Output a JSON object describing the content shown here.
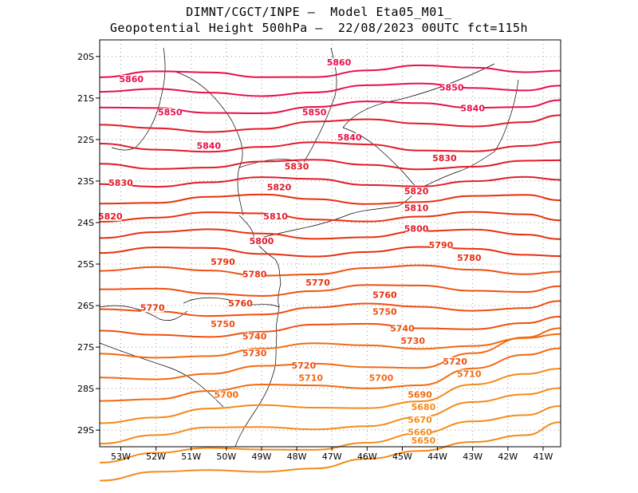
{
  "header": {
    "line1": "DIMNT/CGCT/INPE –  Model Eta05_M01_",
    "line2": "Geopotential Height 500hPa –  22/08/2023 00UTC fct=115h"
  },
  "axes": {
    "lon_labels": [
      "53W",
      "52W",
      "51W",
      "50W",
      "49W",
      "48W",
      "47W",
      "46W",
      "45W",
      "44W",
      "43W",
      "42W",
      "41W"
    ],
    "lat_labels": [
      "20S",
      "21S",
      "22S",
      "23S",
      "24S",
      "25S",
      "26S",
      "27S",
      "28S",
      "29S"
    ]
  },
  "chart_data": {
    "type": "contour_map",
    "variable": "Geopotential Height 500hPa",
    "units": "gpm",
    "lon_range": [
      -53.6,
      -40.5
    ],
    "lat_range": [
      -29.4,
      -19.6
    ],
    "contour_levels": [
      5860,
      5850,
      5840,
      5830,
      5820,
      5810,
      5800,
      5790,
      5780,
      5770,
      5760,
      5750,
      5740,
      5730,
      5720,
      5710,
      5700,
      5690,
      5680,
      5670,
      5660,
      5650
    ],
    "labels": [
      {
        "text": "5860",
        "lon": -52.7,
        "lat": -20.6
      },
      {
        "text": "5860",
        "lon": -46.8,
        "lat": -20.2
      },
      {
        "text": "5850",
        "lon": -51.6,
        "lat": -21.4
      },
      {
        "text": "5850",
        "lon": -47.5,
        "lat": -21.4
      },
      {
        "text": "5850",
        "lon": -43.6,
        "lat": -20.8
      },
      {
        "text": "5840",
        "lon": -50.5,
        "lat": -22.2
      },
      {
        "text": "5840",
        "lon": -46.5,
        "lat": -22.0
      },
      {
        "text": "5840",
        "lon": -43.0,
        "lat": -21.3
      },
      {
        "text": "5830",
        "lon": -53.0,
        "lat": -23.1
      },
      {
        "text": "5830",
        "lon": -48.0,
        "lat": -22.7
      },
      {
        "text": "5830",
        "lon": -43.8,
        "lat": -22.5
      },
      {
        "text": "5820",
        "lon": -53.3,
        "lat": -23.9
      },
      {
        "text": "5820",
        "lon": -48.5,
        "lat": -23.2
      },
      {
        "text": "5820",
        "lon": -44.6,
        "lat": -23.3
      },
      {
        "text": "5810",
        "lon": -48.6,
        "lat": -23.9
      },
      {
        "text": "5810",
        "lon": -44.6,
        "lat": -23.7
      },
      {
        "text": "5800",
        "lon": -49.0,
        "lat": -24.5
      },
      {
        "text": "5800",
        "lon": -44.6,
        "lat": -24.2
      },
      {
        "text": "5790",
        "lon": -50.1,
        "lat": -25.0
      },
      {
        "text": "5790",
        "lon": -43.9,
        "lat": -24.6
      },
      {
        "text": "5780",
        "lon": -49.2,
        "lat": -25.3
      },
      {
        "text": "5780",
        "lon": -43.1,
        "lat": -24.9
      },
      {
        "text": "5770",
        "lon": -52.1,
        "lat": -26.1
      },
      {
        "text": "5770",
        "lon": -47.4,
        "lat": -25.5
      },
      {
        "text": "5760",
        "lon": -49.6,
        "lat": -26.0
      },
      {
        "text": "5760",
        "lon": -45.5,
        "lat": -25.8
      },
      {
        "text": "5750",
        "lon": -50.1,
        "lat": -26.5
      },
      {
        "text": "5750",
        "lon": -45.5,
        "lat": -26.2
      },
      {
        "text": "5740",
        "lon": -49.2,
        "lat": -26.8
      },
      {
        "text": "5740",
        "lon": -45.0,
        "lat": -26.6
      },
      {
        "text": "5730",
        "lon": -49.2,
        "lat": -27.2
      },
      {
        "text": "5730",
        "lon": -44.7,
        "lat": -26.9
      },
      {
        "text": "5720",
        "lon": -47.8,
        "lat": -27.5
      },
      {
        "text": "5720",
        "lon": -43.5,
        "lat": -27.4
      },
      {
        "text": "5710",
        "lon": -47.6,
        "lat": -27.8
      },
      {
        "text": "5710",
        "lon": -43.1,
        "lat": -27.7
      },
      {
        "text": "5700",
        "lon": -50.0,
        "lat": -28.2
      },
      {
        "text": "5700",
        "lon": -45.6,
        "lat": -27.8
      },
      {
        "text": "5690",
        "lon": -44.5,
        "lat": -28.2
      },
      {
        "text": "5680",
        "lon": -44.4,
        "lat": -28.5
      },
      {
        "text": "5670",
        "lon": -44.5,
        "lat": -28.8
      },
      {
        "text": "5660",
        "lon": -44.5,
        "lat": -29.1
      },
      {
        "text": "5650",
        "lon": -44.4,
        "lat": -29.3
      }
    ]
  }
}
